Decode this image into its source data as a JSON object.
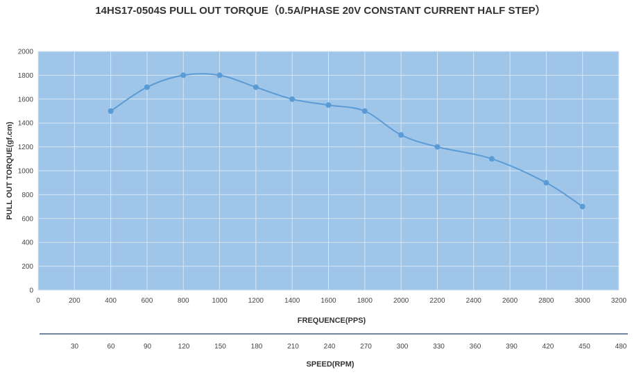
{
  "chart_data": {
    "type": "line",
    "title": "14HS17-0504S PULL OUT TORQUE（0.5A/PHASE 20V CONSTANT CURRENT    HALF STEP）",
    "xlabel": "FREQUENCE(PPS)",
    "ylabel": "PULL OUT TORQUE(gf.cm)",
    "x2label": "SPEED(RPM)",
    "xlim": [
      0,
      3200
    ],
    "ylim": [
      0,
      2000
    ],
    "x_ticks": [
      0,
      200,
      400,
      600,
      800,
      1000,
      1200,
      1400,
      1600,
      1800,
      2000,
      2200,
      2400,
      2600,
      2800,
      3000,
      3200
    ],
    "y_ticks": [
      0,
      200,
      400,
      600,
      800,
      1000,
      1200,
      1400,
      1600,
      1800,
      2000
    ],
    "x2_ticks": [
      30,
      60,
      90,
      120,
      150,
      180,
      210,
      240,
      270,
      300,
      330,
      360,
      390,
      420,
      450,
      480
    ],
    "series": [
      {
        "x": [
          400,
          600,
          800,
          1000,
          1200,
          1400,
          1600,
          1800,
          2000,
          2200,
          2500,
          2800,
          3000
        ],
        "y": [
          1500,
          1700,
          1800,
          1800,
          1700,
          1600,
          1550,
          1500,
          1300,
          1200,
          1100,
          900,
          700
        ]
      }
    ],
    "grid": true,
    "colors": {
      "plot_bg": "#9fc5e8",
      "line": "#5b9bd5",
      "marker": "#5b9bd5",
      "grid": "#d9e6f2",
      "speed_axis": "#1f3a5f"
    }
  }
}
